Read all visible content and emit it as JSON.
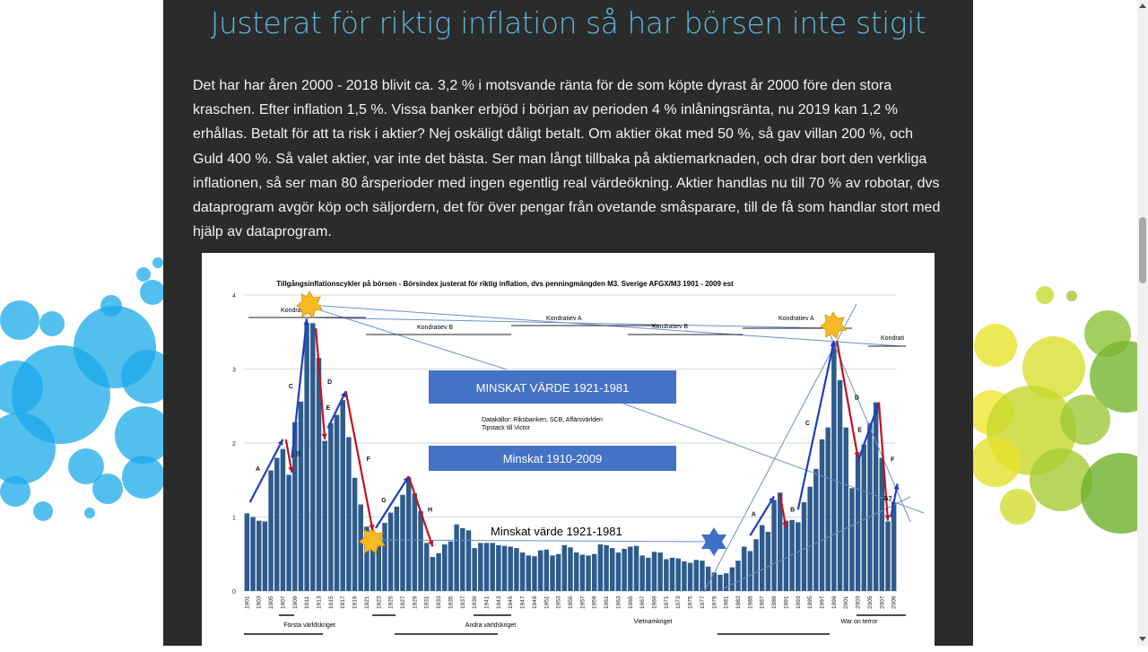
{
  "article": {
    "title": "Justerat för riktig inflation så har börsen inte stigit",
    "paragraph": "Det har har åren 2000 - 2018 blivit ca. 3,2 % i motsvande ränta för de som köpte dyrast år 2000 före den stora kraschen. Efter inflation 1,5 %. Vissa banker erbjöd i början av perioden 4 % inlåningsränta, nu 2019 kan 1,2 % erhållas. Betalt för att ta risk i aktier? Nej oskäligt dåligt betalt. Om aktier ökat med 50 %, så gav villan 200 %, och Guld 400 %. Så valet aktier, var inte det bästa. Ser man långt tillbaka på aktiemarknaden, och drar bort den verkliga inflationen, så ser man 80 årsperioder med ingen egentlig real värdeökning. Aktier handlas nu till 70 % av robotar, dvs dataprogram avgör köp och säljordern, det för över pengar från ovetande småsparare, till de få som handlar stort med hjälp av dataprogram."
  },
  "colors": {
    "title": "#5fb4d6",
    "column_bg": "#2b2b2b",
    "bar": "#2e5b8c",
    "up_arrow": "#1f3fbf",
    "down_arrow": "#c0141c",
    "box": "#4472c4",
    "star": "#f7b924"
  },
  "chart_data": {
    "type": "bar",
    "title": "Tillgångsinflationscykler på börsen - Börsindex justerat för riktig inflation, dvs penningmängden M3. Sverige AFGX/M3 1901 - 2009 est",
    "x_start": 1901,
    "x_end": 2009,
    "values": [
      1.05,
      1.0,
      0.95,
      0.94,
      1.63,
      1.8,
      1.92,
      1.57,
      2.28,
      2.56,
      3.62,
      3.62,
      3.15,
      2.03,
      2.27,
      2.38,
      2.58,
      2.08,
      1.53,
      1.17,
      0.87,
      0.82,
      0.78,
      0.92,
      1.06,
      1.14,
      1.3,
      1.53,
      1.32,
      1.08,
      0.65,
      0.46,
      0.51,
      0.63,
      0.67,
      0.9,
      0.85,
      0.82,
      0.58,
      0.65,
      0.65,
      0.65,
      0.62,
      0.61,
      0.6,
      0.58,
      0.52,
      0.48,
      0.47,
      0.55,
      0.56,
      0.48,
      0.5,
      0.62,
      0.59,
      0.52,
      0.49,
      0.48,
      0.5,
      0.63,
      0.62,
      0.58,
      0.52,
      0.57,
      0.6,
      0.61,
      0.48,
      0.45,
      0.53,
      0.52,
      0.43,
      0.45,
      0.44,
      0.4,
      0.38,
      0.42,
      0.41,
      0.33,
      0.25,
      0.22,
      0.24,
      0.32,
      0.41,
      0.6,
      0.54,
      0.7,
      0.89,
      0.8,
      1.23,
      1.33,
      0.95,
      0.96,
      0.93,
      1.2,
      1.41,
      1.65,
      2.05,
      2.21,
      3.36,
      2.85,
      2.21,
      1.39,
      1.84,
      1.98,
      2.27,
      2.55,
      1.8,
      0.94,
      1.2
    ],
    "ylim": [
      0,
      4
    ],
    "yticks": [
      "0",
      "1",
      "2",
      "3",
      "4"
    ],
    "grid": true,
    "cycle_arrows": [
      {
        "label": "A",
        "dir": "up",
        "from": [
          1901.5,
          1.2
        ],
        "to": [
          1907,
          2.05
        ]
      },
      {
        "label": "B",
        "dir": "down",
        "from": [
          1907.5,
          2.05
        ],
        "to": [
          1908.5,
          1.6
        ]
      },
      {
        "label": "C",
        "dir": "up",
        "from": [
          1908.5,
          1.8
        ],
        "to": [
          1911,
          3.68
        ]
      },
      {
        "label": "D",
        "dir": "down",
        "from": [
          1912.5,
          3.55
        ],
        "to": [
          1914,
          2.05
        ]
      },
      {
        "label": "E",
        "dir": "up",
        "from": [
          1914.5,
          2.2
        ],
        "to": [
          1917.5,
          2.7
        ]
      },
      {
        "label": "F",
        "dir": "down",
        "from": [
          1917.5,
          2.7
        ],
        "to": [
          1922,
          0.82
        ]
      },
      {
        "label": "G",
        "dir": "up",
        "from": [
          1922.5,
          0.85
        ],
        "to": [
          1928,
          1.55
        ]
      },
      {
        "label": "H",
        "dir": "down",
        "from": [
          1928,
          1.55
        ],
        "to": [
          1932,
          0.6
        ]
      },
      {
        "label": "A",
        "dir": "up",
        "from": [
          1985,
          0.75
        ],
        "to": [
          1989,
          1.28
        ]
      },
      {
        "label": "B",
        "dir": "down",
        "from": [
          1990,
          1.3
        ],
        "to": [
          1991,
          0.85
        ]
      },
      {
        "label": "C",
        "dir": "up",
        "from": [
          1993,
          1.1
        ],
        "to": [
          1999,
          3.38
        ]
      },
      {
        "label": "D",
        "dir": "down",
        "from": [
          1999.5,
          3.38
        ],
        "to": [
          2003,
          1.8
        ]
      },
      {
        "label": "E",
        "dir": "up",
        "from": [
          2003,
          1.75
        ],
        "to": [
          2006.5,
          2.55
        ]
      },
      {
        "label": "F",
        "dir": "down",
        "from": [
          2006.5,
          2.55
        ],
        "to": [
          2008,
          0.95
        ]
      },
      {
        "label": "G?",
        "dir": "up",
        "from": [
          2008.5,
          1.0
        ],
        "to": [
          2009.6,
          1.45
        ]
      }
    ],
    "kondratiev": [
      "Kondratiev",
      "Kondratiev B",
      "Kondratiev A",
      "Kondratiev B",
      "Kondratiev A",
      "Kondrati"
    ],
    "box1": "MINSKAT VÄRDE 1921-1981",
    "box2": "Minskat 1910-2009",
    "sources_line1": "Datakällor: Riksbanken, SCB, Affärsvärlden",
    "sources_line2": "Tipstack till Victor",
    "annotation_minskat": "Minskat värde 1921-1981",
    "wars": [
      "Första världskriget",
      "Andra världskriget",
      "Vietnamkriget",
      "War on terror"
    ]
  }
}
